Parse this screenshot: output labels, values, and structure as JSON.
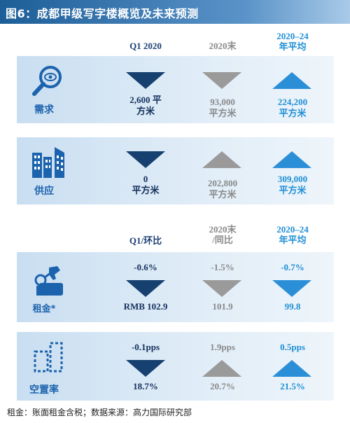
{
  "title": "图6：成都甲级写字楼概览及未来预测",
  "header_top": {
    "col1": "Q1 2020",
    "col2": "2020末",
    "col3_line1": "2020–24",
    "col3_line2": "年平均"
  },
  "header_bottom": {
    "col1": "Q1/环比",
    "col2_line1": "2020末",
    "col2_line2": "/同比",
    "col3_line1": "2020–24",
    "col3_line2": "年平均"
  },
  "rows": {
    "demand": {
      "label": "需求",
      "icon": "magnifier-eye-icon",
      "q1_trend": "down",
      "q1_line1": "2,600 平",
      "q1_line2": "方米",
      "end_trend": "down",
      "end_line1": "93,000",
      "end_line2": "平方米",
      "avg_trend": "up",
      "avg_line1": "224,200",
      "avg_line2": "平方米"
    },
    "supply": {
      "label": "供应",
      "icon": "buildings-icon",
      "q1_trend": "down",
      "q1_line1": "0",
      "q1_line2": "平方米",
      "end_trend": "up",
      "end_line1": "202,800",
      "end_line2": "平方米",
      "avg_trend": "up",
      "avg_line1": "309,000",
      "avg_line2": "平方米"
    },
    "rent": {
      "label": "租金*",
      "icon": "key-hand-icon",
      "q1_change": "-0.6%",
      "q1_trend": "down",
      "q1_value": "RMB 102.9",
      "end_change": "-1.5%",
      "end_trend": "down",
      "end_value": "101.9",
      "avg_change": "-0.7%",
      "avg_trend": "down",
      "avg_value": "99.8"
    },
    "vacancy": {
      "label": "空置率",
      "icon": "vacant-building-icon",
      "q1_change": "-0.1pps",
      "q1_trend": "down",
      "q1_value": "18.7%",
      "end_change": "1.9pps",
      "end_trend": "up",
      "end_value": "20.7%",
      "avg_change": "0.5pps",
      "avg_trend": "up",
      "avg_value": "21.5%"
    }
  },
  "footer": "租金：账面租金含税；数据来源：高力国际研究部",
  "colors": {
    "navy": "#16406f",
    "gray": "#9a9a9a",
    "light_blue": "#2b8fd8"
  }
}
